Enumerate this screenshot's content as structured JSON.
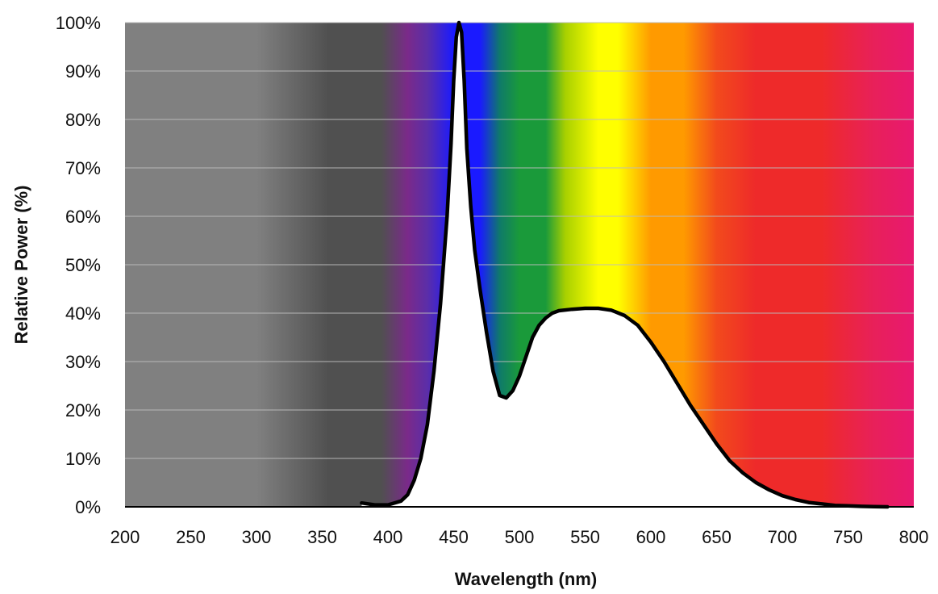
{
  "chart_data": {
    "type": "area",
    "title": "",
    "xlabel": "Wavelength (nm)",
    "ylabel": "Relative Power (%)",
    "xlim": [
      200,
      800
    ],
    "ylim": [
      0,
      100
    ],
    "x_ticks": [
      "200",
      "250",
      "300",
      "350",
      "400",
      "450",
      "500",
      "550",
      "600",
      "650",
      "700",
      "750",
      "800"
    ],
    "y_ticks": [
      "0%",
      "10%",
      "20%",
      "30%",
      "40%",
      "50%",
      "60%",
      "70%",
      "80%",
      "90%",
      "100%"
    ],
    "grid": true,
    "legend": "none",
    "background": "visible light spectrum gradient",
    "series": [
      {
        "x": [
          380,
          390,
          400,
          410,
          415,
          420,
          425,
          430,
          435,
          440,
          445,
          448,
          450,
          452,
          454,
          456,
          458,
          460,
          463,
          466,
          470,
          475,
          480,
          485,
          490,
          495,
          500,
          505,
          510,
          515,
          520,
          525,
          530,
          540,
          550,
          560,
          570,
          580,
          590,
          600,
          610,
          620,
          630,
          640,
          650,
          660,
          670,
          680,
          690,
          700,
          710,
          720,
          730,
          740,
          750,
          760,
          770,
          780
        ],
        "values": [
          0.8,
          0.4,
          0.4,
          1.2,
          2.5,
          5.5,
          10,
          17,
          28,
          42,
          60,
          75,
          88,
          97,
          100,
          98,
          88,
          74,
          62,
          53,
          45,
          36,
          28,
          23,
          22.5,
          24,
          27,
          31,
          35,
          37.5,
          39,
          40,
          40.5,
          40.8,
          41,
          41,
          40.6,
          39.5,
          37.5,
          34,
          30,
          25.5,
          21,
          17,
          13,
          9.5,
          7,
          5,
          3.5,
          2.3,
          1.5,
          0.9,
          0.6,
          0.3,
          0.2,
          0.1,
          0.05,
          0
        ]
      }
    ],
    "colors": {
      "curve": "#000000",
      "fill": "#ffffff",
      "gridline": "#bdbdbd",
      "axis": "#000000",
      "spectrum": {
        "uv": "#808080",
        "uv_dark": "#505050",
        "violet": "#7a2a8a",
        "purple": "#5b2ea8",
        "blue": "#1a1aff",
        "cyan_green": "#0f7a6a",
        "green": "#1a9a3a",
        "lime": "#a8d000",
        "yellow": "#ffff00",
        "orange": "#ff9a00",
        "red_orange": "#f24a1c",
        "red": "#ee2a2a",
        "crimson": "#e8205a",
        "magenta": "#e81870"
      }
    }
  }
}
